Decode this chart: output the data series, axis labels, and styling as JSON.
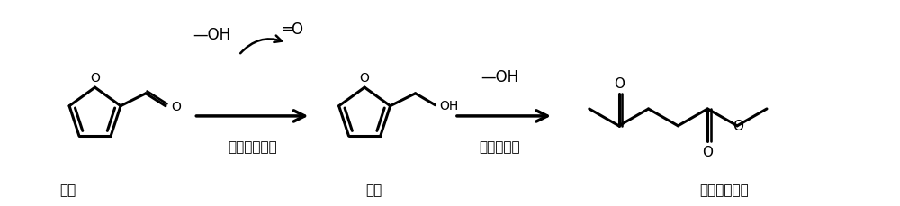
{
  "bg_color": "#ffffff",
  "line_color": "#000000",
  "text_color": "#000000",
  "lw": 2.2,
  "label_furfural": "糠醛",
  "label_furfuryl": "糠醇",
  "label_methyl_lev": "乙酰丙酸甲酯",
  "label_step1": "原位加氢反应",
  "label_step2": "酸催化醇解",
  "label_meoh1": "—OH",
  "label_hcho": "═O",
  "label_meoh2": "—OH",
  "figsize": [
    10.0,
    2.3
  ],
  "dpi": 100,
  "xlim": [
    0,
    10
  ],
  "ylim": [
    0,
    2.3
  ]
}
